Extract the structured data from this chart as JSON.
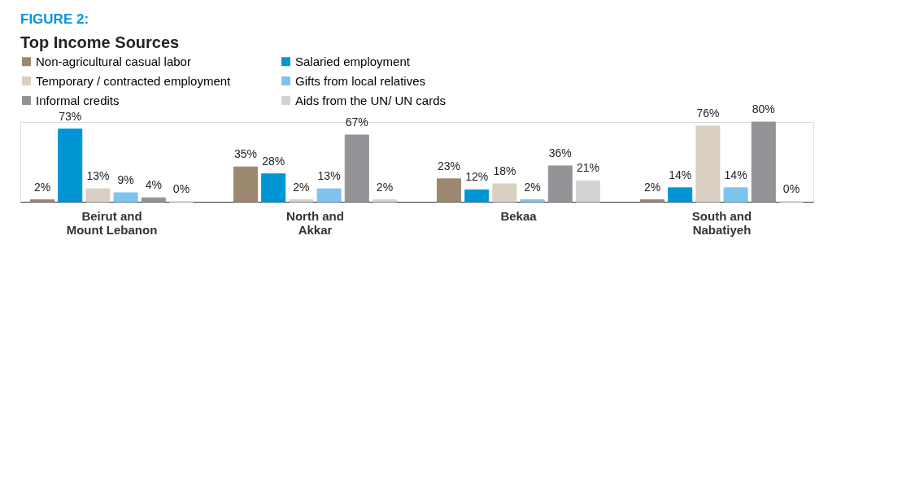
{
  "chart_data": {
    "type": "bar",
    "title": "FIGURE 2:",
    "subtitle": "Top Income Sources",
    "categories": [
      "Beirut and Mount Lebanon",
      "North and Akkar",
      "Bekaa",
      "South and Nabatiyeh"
    ],
    "series": [
      {
        "name": "Non-agricultural casual labor",
        "color": "#9c8870",
        "values": [
          2,
          35,
          23,
          2
        ],
        "value_labels": [
          "2%",
          "35%",
          "23%",
          "2%"
        ]
      },
      {
        "name": "Salaried employment",
        "color": "#0096d6",
        "values": [
          73,
          28,
          12,
          14
        ],
        "value_labels": [
          "73%",
          "28%",
          "12%",
          "14%"
        ]
      },
      {
        "name": "Temporary / contracted employment",
        "color": "#d9cfc3",
        "values": [
          13,
          2,
          18,
          76
        ],
        "value_labels": [
          "13%",
          "2%",
          "18%",
          "76%"
        ]
      },
      {
        "name": "Gifts from local relatives",
        "color": "#7dc4ef",
        "values": [
          9,
          13,
          2,
          14
        ],
        "value_labels": [
          "9%",
          "13%",
          "2%",
          "14%"
        ]
      },
      {
        "name": "Informal credits",
        "color": "#929497",
        "values": [
          4,
          67,
          36,
          80
        ],
        "value_labels": [
          "4%",
          "67%",
          "36%",
          "80%"
        ]
      },
      {
        "name": "Aids from the UN/ UN cards",
        "color": "#d3d3d5",
        "values": [
          0,
          2,
          21,
          0
        ],
        "value_labels": [
          "0%",
          "2%",
          "21%",
          "0%"
        ]
      }
    ],
    "legend": "top",
    "grid": false
  }
}
